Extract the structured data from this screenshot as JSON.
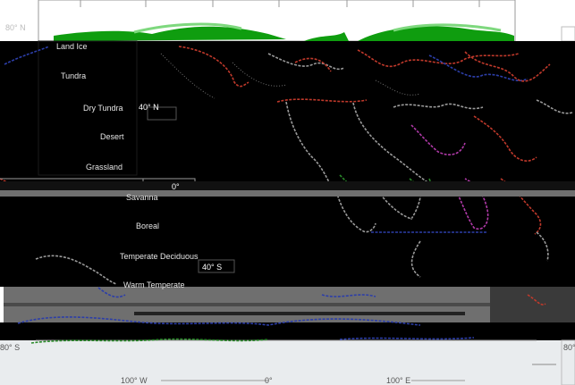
{
  "lat_labels": {
    "n80": "80° N",
    "n40": "40° N",
    "eq": "0°",
    "s40": "40° S",
    "s80_left": "80° S",
    "s80_right": "80° S"
  },
  "lon_labels": {
    "w100": "100° W",
    "zero": "0°",
    "e100": "100° E"
  },
  "legend": [
    "Land Ice",
    "Tundra",
    "Dry Tundra",
    "Desert",
    "Grassland",
    "Savanna",
    "Boreal",
    "Temperate Deciduous",
    "Warm Temperate"
  ],
  "colors": {
    "background": "#000000",
    "ice_band": "#0f9d0f",
    "ice_band_light": "#7ed87e",
    "coast_red": "#c0392b",
    "coast_blue": "#2c3ea8",
    "coast_grey": "#9a9a9a",
    "coast_magenta": "#b03aa8",
    "coast_green": "#2a8a2a",
    "band_grey": "#6f6f6f",
    "frame": "#bdbdbd"
  },
  "icons": {
    "coastlines": "coastline-paths",
    "legend": "biome-legend"
  }
}
